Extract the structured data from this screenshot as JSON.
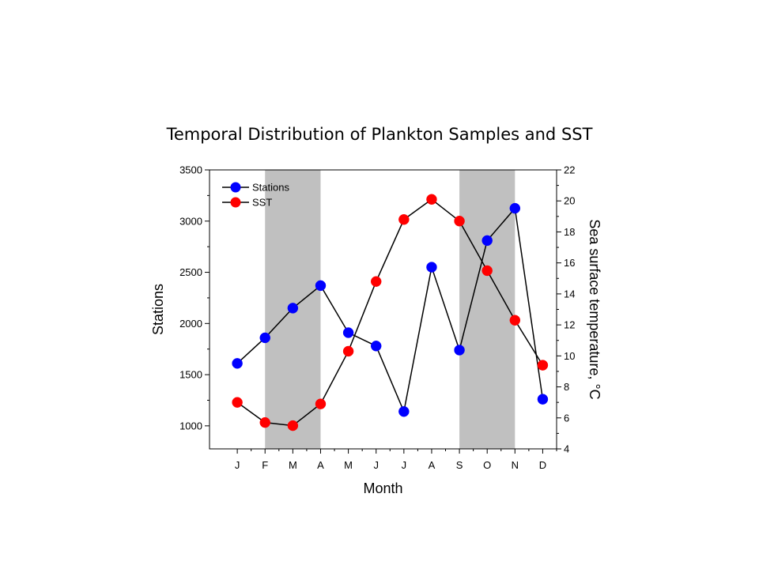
{
  "chart_data": {
    "type": "line",
    "title": "Temporal Distribution of Plankton Samples and SST",
    "categories": [
      "J",
      "F",
      "M",
      "A",
      "M",
      "J",
      "J",
      "A",
      "S",
      "O",
      "N",
      "D"
    ],
    "xlabel": "Month",
    "ylabel": "Stations",
    "y2label": "Sea surface temperature, °C",
    "ylim": [
      775,
      3500
    ],
    "y2lim": [
      4,
      22
    ],
    "yticks": [
      1000,
      1500,
      2000,
      2500,
      3000,
      3500
    ],
    "y2ticks": [
      4,
      6,
      8,
      10,
      12,
      14,
      16,
      18,
      20,
      22
    ],
    "shaded_bands": [
      [
        "F",
        "A"
      ],
      [
        "S",
        "N"
      ]
    ],
    "band_color": "#c0c0c0",
    "legend_position": "top-left",
    "grid": false,
    "series": [
      {
        "name": "Stations",
        "axis": "left",
        "color": "#0000ff",
        "values": [
          1610,
          1860,
          2150,
          2370,
          1910,
          1780,
          1140,
          2550,
          1740,
          2810,
          3125,
          1260
        ]
      },
      {
        "name": "SST",
        "axis": "right",
        "color": "#ff0000",
        "values": [
          7.0,
          5.7,
          5.5,
          6.9,
          10.3,
          14.8,
          18.8,
          20.1,
          18.7,
          15.5,
          12.3,
          9.4
        ]
      }
    ]
  }
}
